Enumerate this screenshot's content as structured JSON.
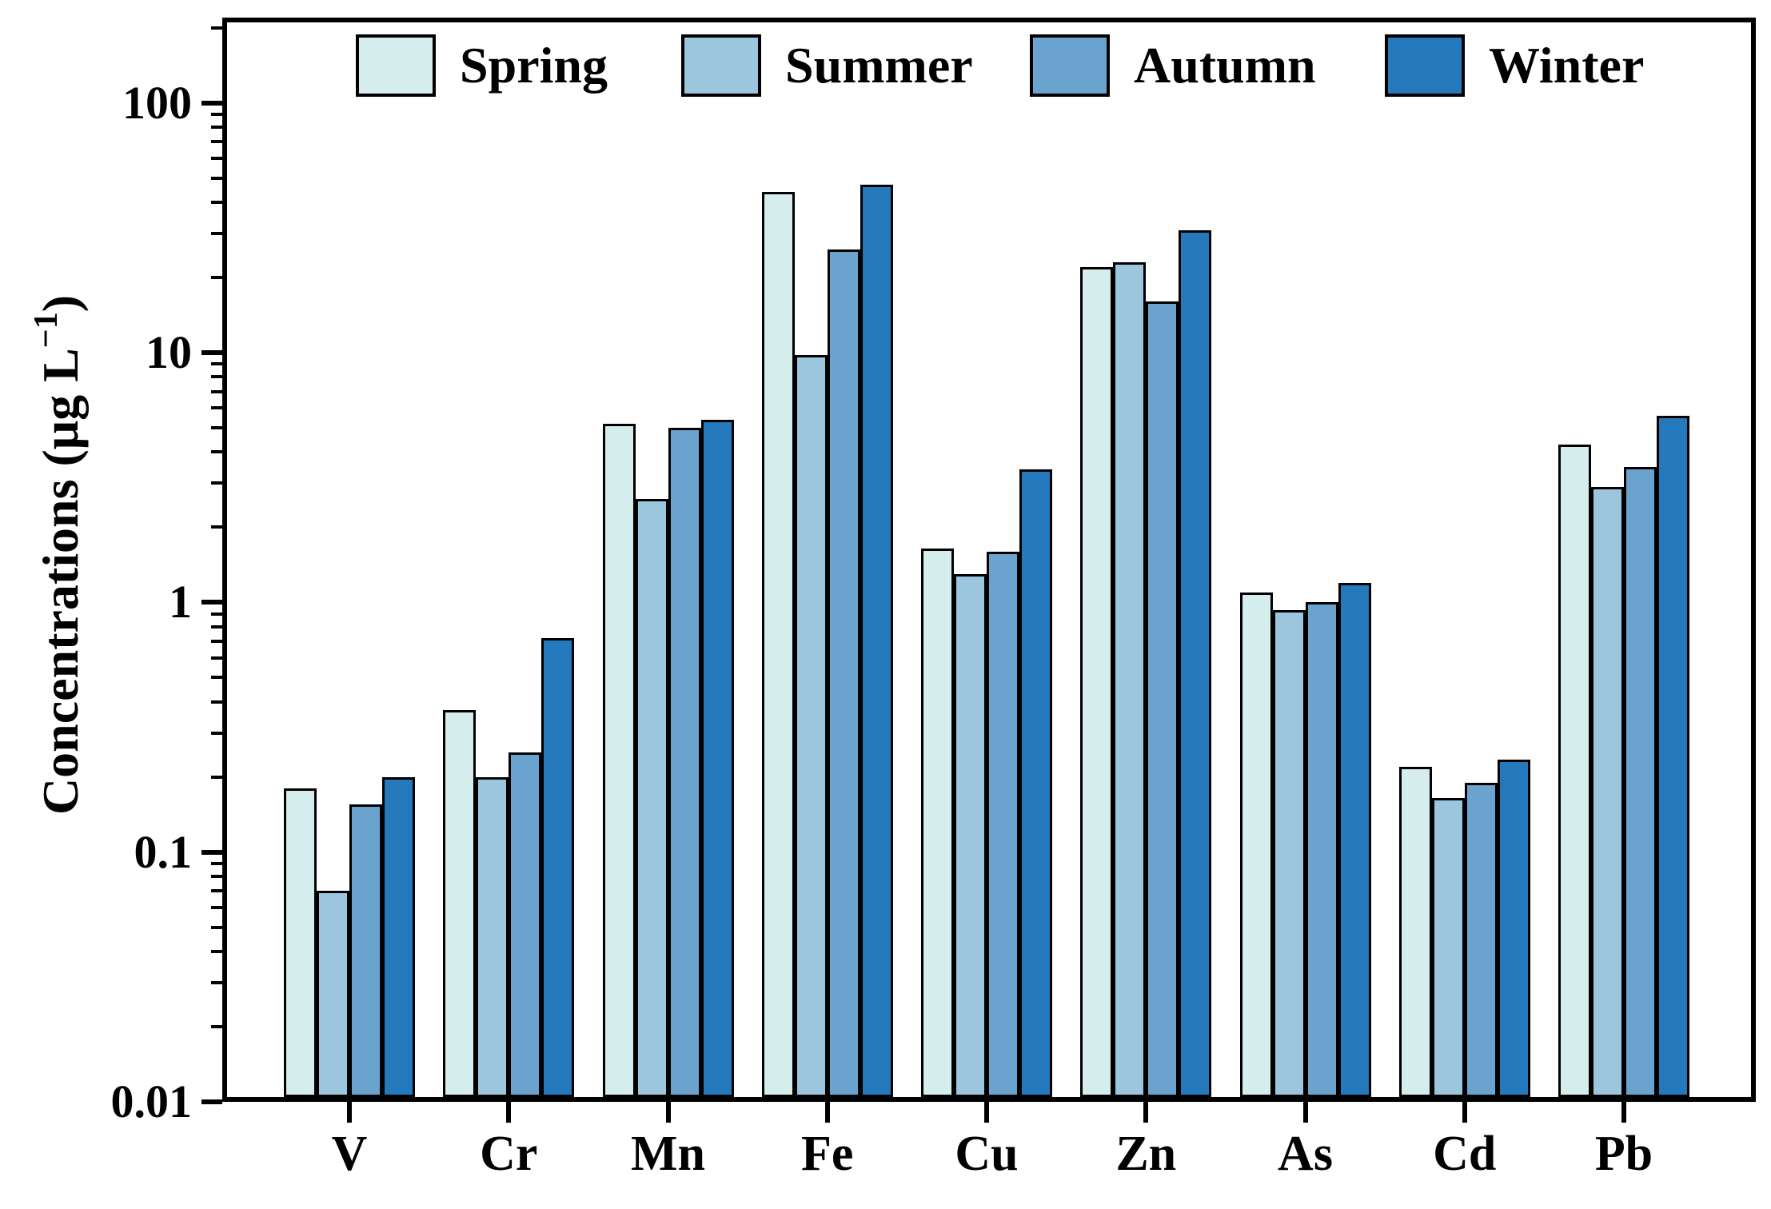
{
  "chart_data": {
    "type": "bar",
    "scale_y": "log",
    "title": "",
    "xlabel": "",
    "ylabel": {
      "prefix": "Concentrations (μg L",
      "superscript": "−1",
      "suffix": ")"
    },
    "categories": [
      "V",
      "Cr",
      "Mn",
      "Fe",
      "Cu",
      "Zn",
      "As",
      "Cd",
      "Pb"
    ],
    "series": [
      {
        "name": "Spring",
        "color": "#d6edee",
        "values": [
          0.18,
          0.37,
          5.2,
          44,
          1.65,
          22,
          1.1,
          0.22,
          4.3
        ]
      },
      {
        "name": "Summer",
        "color": "#9cc5de",
        "values": [
          0.07,
          0.2,
          2.6,
          9.8,
          1.3,
          23,
          0.93,
          0.165,
          2.9
        ]
      },
      {
        "name": "Autumn",
        "color": "#6aa3ce",
        "values": [
          0.155,
          0.25,
          5.0,
          26,
          1.6,
          16,
          1.0,
          0.19,
          3.5
        ]
      },
      {
        "name": "Winter",
        "color": "#2379bc",
        "values": [
          0.2,
          0.72,
          5.4,
          47,
          3.4,
          31,
          1.2,
          0.235,
          5.6
        ]
      }
    ],
    "y_ticks": [
      {
        "value": 100,
        "label": "100"
      },
      {
        "value": 10,
        "label": "10"
      },
      {
        "value": 1,
        "label": "1"
      },
      {
        "value": 0.1,
        "label": "0.1"
      },
      {
        "value": 0.01,
        "label": "0.01"
      }
    ],
    "ylim": [
      0.01,
      220
    ],
    "grid": false,
    "legend_position": "top-inside",
    "legend_entries": [
      "Spring",
      "Summer",
      "Autumn",
      "Winter"
    ],
    "axis_color": "#000000",
    "bar_border_color": "#000000"
  }
}
